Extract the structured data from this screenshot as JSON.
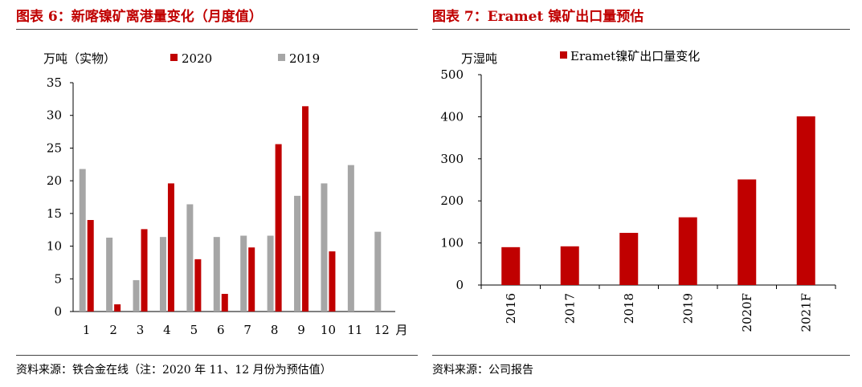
{
  "left_figure": {
    "caption": "图表 6：新喀镍矿离港量变化（月度值）",
    "source": "资料来源：铁合金在线（注：2020 年 11、12 月份为预估值）"
  },
  "right_figure": {
    "caption": "图表 7：Eramet 镍矿出口量预估",
    "source": "资料来源：公司报告"
  },
  "chart_data": [
    {
      "type": "bar",
      "title": "",
      "ylabel": "万吨（实物）",
      "xlabel": "月",
      "ylim": [
        0,
        35
      ],
      "yticks": [
        "0",
        "5",
        "10",
        "15",
        "20",
        "25",
        "30",
        "35"
      ],
      "categories": [
        "1",
        "2",
        "3",
        "4",
        "5",
        "6",
        "7",
        "8",
        "9",
        "10",
        "11",
        "12"
      ],
      "legend_position": "top",
      "series": [
        {
          "name": "2019",
          "color": "#a6a6a6",
          "values": [
            21.8,
            11.3,
            4.8,
            11.4,
            16.4,
            11.4,
            11.6,
            11.6,
            17.7,
            19.6,
            22.4,
            12.2
          ]
        },
        {
          "name": "2020",
          "color": "#c00000",
          "values": [
            14.0,
            1.1,
            12.6,
            19.6,
            8.0,
            2.7,
            9.8,
            25.6,
            31.4,
            9.2,
            null,
            null
          ]
        }
      ]
    },
    {
      "type": "bar",
      "title": "",
      "ylabel": "万湿吨",
      "ylim": [
        0,
        500
      ],
      "yticks": [
        "0",
        "100",
        "200",
        "300",
        "400",
        "500"
      ],
      "categories": [
        "2016",
        "2017",
        "2018",
        "2019",
        "2020F",
        "2021F"
      ],
      "legend_position": "top",
      "series": [
        {
          "name": "Eramet镍矿出口量变化",
          "color": "#c00000",
          "values": [
            90,
            92,
            124,
            161,
            251,
            401
          ]
        }
      ]
    }
  ]
}
